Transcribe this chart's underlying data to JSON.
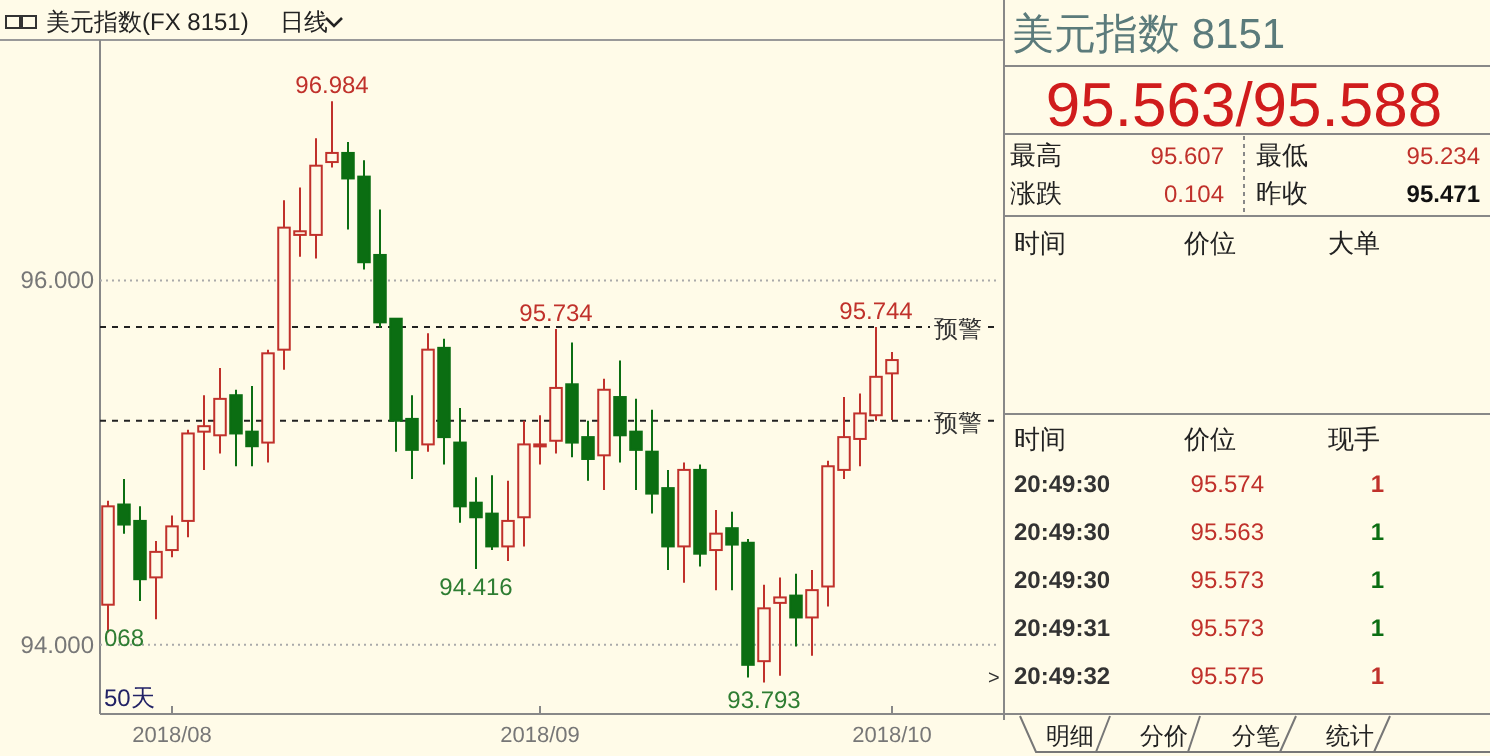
{
  "chart_data": [
    {
      "type": "candlestick",
      "title": "美元指数(FX 8151)",
      "subtitle": "日线",
      "categories": [
        null,
        null,
        null,
        null,
        "2018/08",
        null,
        null,
        null,
        null,
        null,
        null,
        null,
        null,
        null,
        null,
        null,
        null,
        null,
        null,
        null,
        null,
        null,
        null,
        null,
        null,
        null,
        null,
        "2018/09",
        null,
        null,
        null,
        null,
        null,
        null,
        null,
        null,
        null,
        null,
        null,
        null,
        null,
        null,
        null,
        null,
        null,
        null,
        null,
        null,
        null,
        "2018/10"
      ],
      "ohlc": [
        [
          94.22,
          94.79,
          94.068,
          94.76
        ],
        [
          94.77,
          94.91,
          94.61,
          94.66
        ],
        [
          94.68,
          94.76,
          94.24,
          94.36
        ],
        [
          94.37,
          94.57,
          94.14,
          94.51
        ],
        [
          94.52,
          94.71,
          94.48,
          94.65
        ],
        [
          94.68,
          95.18,
          94.59,
          95.16
        ],
        [
          95.17,
          95.37,
          94.96,
          95.2
        ],
        [
          95.15,
          95.52,
          95.05,
          95.35
        ],
        [
          95.37,
          95.4,
          94.98,
          95.16
        ],
        [
          95.17,
          95.42,
          94.98,
          95.09
        ],
        [
          95.11,
          95.62,
          95.0,
          95.6
        ],
        [
          95.62,
          96.44,
          95.51,
          96.29
        ],
        [
          96.25,
          96.51,
          96.13,
          96.27
        ],
        [
          96.25,
          96.78,
          96.12,
          96.63
        ],
        [
          96.65,
          96.984,
          96.62,
          96.7
        ],
        [
          96.7,
          96.76,
          96.28,
          96.56
        ],
        [
          96.57,
          96.66,
          96.06,
          96.1
        ],
        [
          96.14,
          96.39,
          95.74,
          95.77
        ],
        [
          95.79,
          95.79,
          95.06,
          95.23
        ],
        [
          95.24,
          95.37,
          94.91,
          95.07
        ],
        [
          95.1,
          95.71,
          95.06,
          95.62
        ],
        [
          95.63,
          95.68,
          94.99,
          95.14
        ],
        [
          95.11,
          95.3,
          94.67,
          94.76
        ],
        [
          94.78,
          94.92,
          94.416,
          94.7
        ],
        [
          94.72,
          94.93,
          94.52,
          94.54
        ],
        [
          94.54,
          94.9,
          94.46,
          94.68
        ],
        [
          94.7,
          95.23,
          94.54,
          95.1
        ],
        [
          95.09,
          95.26,
          94.99,
          95.1
        ],
        [
          95.12,
          95.734,
          95.05,
          95.41
        ],
        [
          95.43,
          95.66,
          95.03,
          95.11
        ],
        [
          95.14,
          95.23,
          94.9,
          95.02
        ],
        [
          95.04,
          95.46,
          94.85,
          95.4
        ],
        [
          95.36,
          95.56,
          95.0,
          95.15
        ],
        [
          95.17,
          95.35,
          94.85,
          95.07
        ],
        [
          95.06,
          95.29,
          94.72,
          94.83
        ],
        [
          94.86,
          94.96,
          94.41,
          94.54
        ],
        [
          94.54,
          95.0,
          94.34,
          94.96
        ],
        [
          94.96,
          94.99,
          94.43,
          94.5
        ],
        [
          94.52,
          94.74,
          94.3,
          94.61
        ],
        [
          94.64,
          94.73,
          94.3,
          94.55
        ],
        [
          94.56,
          94.58,
          93.82,
          93.89
        ],
        [
          93.91,
          94.33,
          93.793,
          94.2
        ],
        [
          94.23,
          94.37,
          93.83,
          94.26
        ],
        [
          94.27,
          94.39,
          93.99,
          94.15
        ],
        [
          94.15,
          94.41,
          93.94,
          94.3
        ],
        [
          94.32,
          95.01,
          94.21,
          94.98
        ],
        [
          94.96,
          95.36,
          94.91,
          95.14
        ],
        [
          95.13,
          95.38,
          94.98,
          95.27
        ],
        [
          95.26,
          95.744,
          95.23,
          95.471
        ],
        [
          95.49,
          95.607,
          95.234,
          95.563
        ]
      ],
      "ylim": [
        93.62,
        97.32
      ],
      "yticks": [
        {
          "value": 94,
          "label": "94.000"
        },
        {
          "value": 96,
          "label": "96.000"
        }
      ],
      "grid": "y",
      "ref_lines": [
        {
          "axis": "y",
          "value": 95.744,
          "label": "预警",
          "line_style": "dashed"
        },
        {
          "axis": "y",
          "value": 95.23,
          "label": "预警",
          "line_style": "dashed"
        }
      ],
      "annotations": [
        {
          "text": "96.984",
          "y": 96.984
        },
        {
          "text": "95.734",
          "y": 95.734
        },
        {
          "text": "95.744",
          "y": 95.744
        },
        {
          "text": "94.416",
          "y": 94.416
        },
        {
          "text": "93.793",
          "y": 93.793
        },
        "068",
        "50天"
      ]
    },
    {
      "type": "other",
      "title": "美元指数 8151",
      "subtitle": "95.563/95.588",
      "annotations": [
        "最高",
        "95.607",
        "最低",
        "95.234",
        "涨跌",
        "0.104",
        "昨收",
        "95.471",
        "时间",
        "价位",
        "大单",
        "时间",
        "价位",
        "现手",
        "20:49:30",
        "95.574",
        "1",
        "20:49:30",
        "95.563",
        "1",
        "20:49:30",
        "95.573",
        "1",
        "20:49:31",
        "95.573",
        "1",
        "20:49:32",
        "95.575",
        "1",
        "明细",
        "分价",
        "分笔",
        "统计",
        ">"
      ]
    }
  ]
}
